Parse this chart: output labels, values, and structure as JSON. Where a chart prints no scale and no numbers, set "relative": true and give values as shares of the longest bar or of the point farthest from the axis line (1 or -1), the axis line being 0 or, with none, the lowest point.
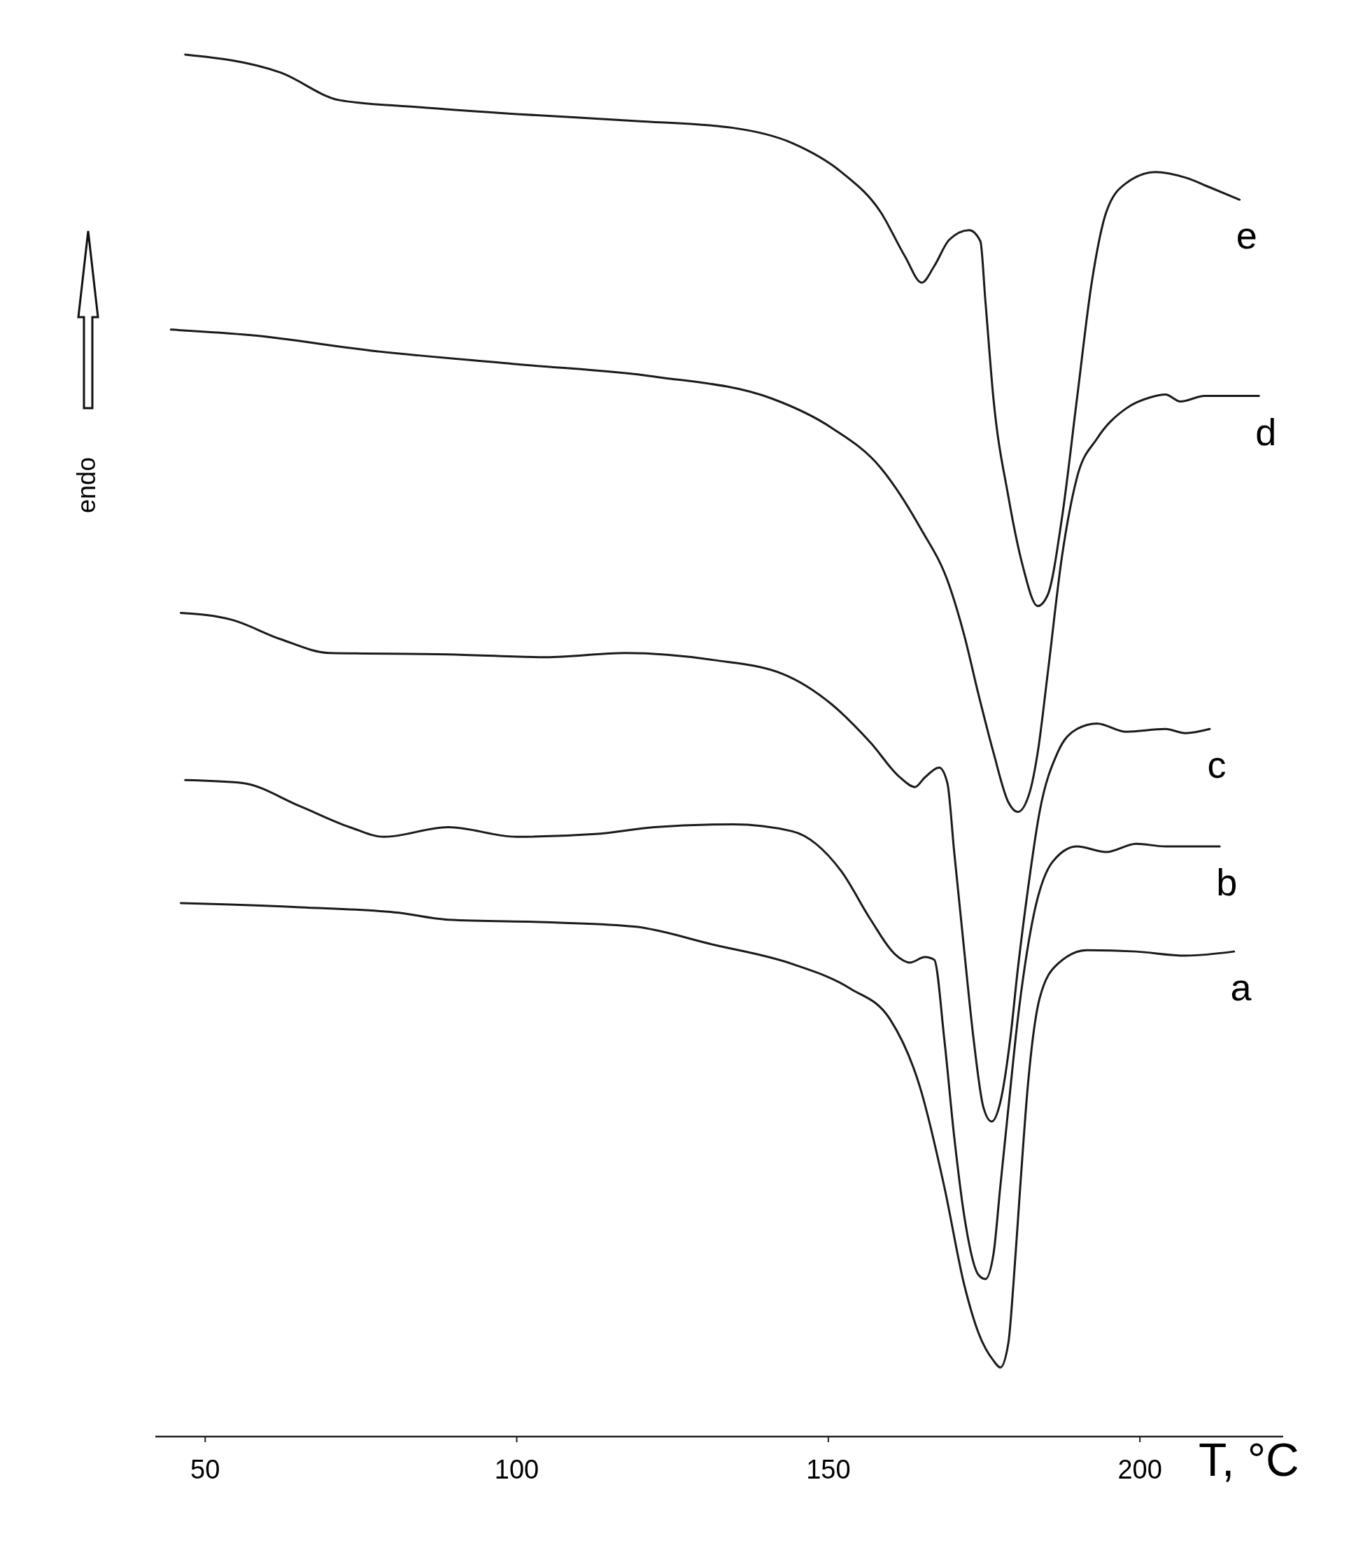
{
  "chart_data": {
    "type": "line",
    "relative": true,
    "xlabel": "T, °C",
    "ylabel": "endo",
    "xlim": [
      42,
      223
    ],
    "xticks": [
      50,
      100,
      150,
      200
    ],
    "line_style": "solid",
    "series": [
      {
        "name": "e",
        "color": "#1a1a1a",
        "x": [
          46.8,
          62.1,
          71.6,
          84.2,
          100.0,
          118.9,
          134.7,
          144.2,
          152.1,
          158.4,
          162.3,
          165.0,
          167.0,
          169.4,
          172.6,
          174.4,
          175.2,
          176.5,
          178.9,
          181.2,
          183.6,
          185.2,
          187.5,
          189.9,
          192.3,
          194.6,
          197.8,
          202.5,
          207.3,
          211.2,
          216.0
        ],
        "values": [
          1.0,
          0.987,
          0.967,
          0.962,
          0.957,
          0.952,
          0.947,
          0.936,
          0.915,
          0.886,
          0.854,
          0.835,
          0.847,
          0.866,
          0.873,
          0.865,
          0.822,
          0.751,
          0.68,
          0.63,
          0.601,
          0.609,
          0.665,
          0.751,
          0.836,
          0.886,
          0.907,
          0.915,
          0.911,
          0.904,
          0.895
        ]
      },
      {
        "name": "d",
        "color": "#1a1a1a",
        "x": [
          44.5,
          57.4,
          76.3,
          100.0,
          122.1,
          141.0,
          150.5,
          158.4,
          164.7,
          169.4,
          171.8,
          174.1,
          176.5,
          178.9,
          180.4,
          182.3,
          183.6,
          185.2,
          187.5,
          189.9,
          193.1,
          197.8,
          201.7,
          204.1,
          206.5,
          210.4,
          219.1
        ],
        "values": [
          0.801,
          0.797,
          0.786,
          0.776,
          0.767,
          0.751,
          0.73,
          0.701,
          0.658,
          0.616,
          0.58,
          0.537,
          0.495,
          0.459,
          0.452,
          0.466,
          0.495,
          0.552,
          0.637,
          0.694,
          0.722,
          0.744,
          0.752,
          0.754,
          0.749,
          0.753,
          0.753
        ]
      },
      {
        "name": "c",
        "color": "#1a1a1a",
        "x": [
          46.1,
          54.3,
          62.1,
          70.0,
          89.0,
          104.7,
          117.4,
          131.5,
          142.6,
          150.5,
          156.8,
          161.5,
          163.9,
          165.5,
          167.8,
          169.1,
          170.2,
          171.8,
          173.3,
          174.9,
          176.2,
          177.6,
          179.2,
          180.4,
          182.0,
          183.9,
          186.8,
          189.9,
          193.1,
          197.8,
          204.1,
          207.3,
          211.2
        ],
        "values": [
          0.596,
          0.591,
          0.577,
          0.567,
          0.566,
          0.564,
          0.567,
          0.562,
          0.552,
          0.53,
          0.502,
          0.477,
          0.47,
          0.477,
          0.484,
          0.473,
          0.423,
          0.352,
          0.288,
          0.238,
          0.228,
          0.242,
          0.288,
          0.338,
          0.395,
          0.452,
          0.495,
          0.512,
          0.516,
          0.51,
          0.512,
          0.509,
          0.512
        ]
      },
      {
        "name": "b",
        "color": "#1a1a1a",
        "x": [
          46.8,
          55.8,
          65.3,
          73.2,
          78.7,
          89.0,
          100.0,
          112.6,
          122.1,
          134.7,
          144.2,
          152.1,
          156.8,
          160.7,
          163.1,
          165.5,
          167.0,
          168.6,
          170.2,
          171.8,
          174.1,
          175.2,
          176.5,
          177.6,
          178.9,
          180.4,
          182.8,
          186.0,
          189.9,
          194.6,
          199.4,
          204.1,
          212.8
        ],
        "values": [
          0.475,
          0.473,
          0.456,
          0.441,
          0.434,
          0.441,
          0.434,
          0.436,
          0.441,
          0.443,
          0.438,
          0.409,
          0.374,
          0.349,
          0.343,
          0.347,
          0.345,
          0.288,
          0.217,
          0.16,
          0.117,
          0.114,
          0.132,
          0.181,
          0.238,
          0.302,
          0.374,
          0.416,
          0.427,
          0.423,
          0.429,
          0.427,
          0.427
        ]
      },
      {
        "name": "a",
        "color": "#1a1a1a",
        "x": [
          46.1,
          65.3,
          81.1,
          89.0,
          106.3,
          118.9,
          131.5,
          144.2,
          153.6,
          159.9,
          164.7,
          168.6,
          171.8,
          174.1,
          176.5,
          177.6,
          178.9,
          179.7,
          180.8,
          182.0,
          183.9,
          186.8,
          191.5,
          199.4,
          207.3,
          215.1
        ],
        "values": [
          0.386,
          0.383,
          0.379,
          0.374,
          0.372,
          0.369,
          0.356,
          0.342,
          0.324,
          0.302,
          0.253,
          0.181,
          0.11,
          0.075,
          0.055,
          0.05,
          0.068,
          0.11,
          0.181,
          0.253,
          0.317,
          0.342,
          0.352,
          0.351,
          0.348,
          0.351
        ]
      }
    ]
  }
}
